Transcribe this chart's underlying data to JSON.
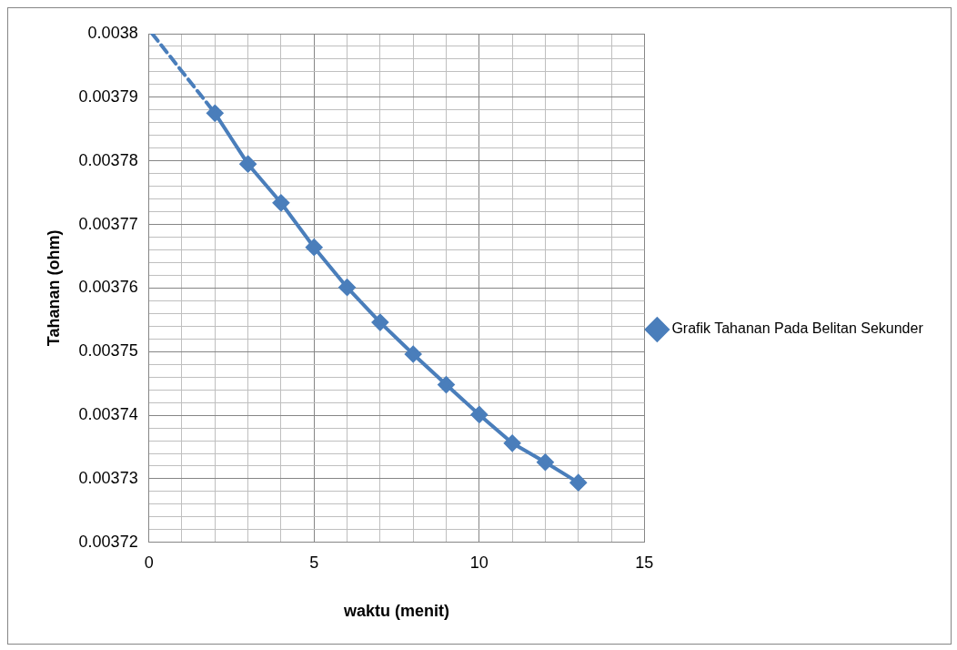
{
  "chart_data": {
    "type": "line",
    "xlabel": "waktu (menit)",
    "ylabel": "Tahanan (ohm)",
    "xlim": [
      0,
      15
    ],
    "ylim": [
      0.00372,
      0.0038
    ],
    "xticks": [
      0,
      {
        "value": 1,
        "label": null
      },
      {
        "value": 2,
        "label": null
      },
      {
        "value": 3,
        "label": null
      },
      {
        "value": 4,
        "label": null
      },
      5,
      {
        "value": 6,
        "label": null
      },
      {
        "value": 7,
        "label": null
      },
      {
        "value": 8,
        "label": null
      },
      {
        "value": 9,
        "label": null
      },
      10,
      {
        "value": 11,
        "label": null
      },
      {
        "value": 12,
        "label": null
      },
      {
        "value": 13,
        "label": null
      },
      {
        "value": 14,
        "label": null
      },
      15
    ],
    "yticks": [
      0.00372,
      {
        "value": 0.003722,
        "label": null
      },
      {
        "value": 0.003724,
        "label": null
      },
      {
        "value": 0.003726,
        "label": null
      },
      {
        "value": 0.003728,
        "label": null
      },
      0.00373,
      {
        "value": 0.003732,
        "label": null
      },
      {
        "value": 0.003734,
        "label": null
      },
      {
        "value": 0.003736,
        "label": null
      },
      {
        "value": 0.003738,
        "label": null
      },
      0.00374,
      {
        "value": 0.003742,
        "label": null
      },
      {
        "value": 0.003744,
        "label": null
      },
      {
        "value": 0.003746,
        "label": null
      },
      {
        "value": 0.003748,
        "label": null
      },
      0.00375,
      {
        "value": 0.003752,
        "label": null
      },
      {
        "value": 0.003754,
        "label": null
      },
      {
        "value": 0.003756,
        "label": null
      },
      {
        "value": 0.003758,
        "label": null
      },
      0.00376,
      {
        "value": 0.003762,
        "label": null
      },
      {
        "value": 0.003764,
        "label": null
      },
      {
        "value": 0.003766,
        "label": null
      },
      {
        "value": 0.003768,
        "label": null
      },
      0.00377,
      {
        "value": 0.003772,
        "label": null
      },
      {
        "value": 0.003774,
        "label": null
      },
      {
        "value": 0.003776,
        "label": null
      },
      {
        "value": 0.003778,
        "label": null
      },
      0.00378,
      {
        "value": 0.003782,
        "label": null
      },
      {
        "value": 0.003784,
        "label": null
      },
      {
        "value": 0.003786,
        "label": null
      },
      {
        "value": 0.003788,
        "label": null
      },
      0.00379,
      {
        "value": 0.003792,
        "label": null
      },
      {
        "value": 0.003794,
        "label": null
      },
      {
        "value": 0.003796,
        "label": null
      },
      {
        "value": 0.003798,
        "label": null
      },
      0.0038
    ],
    "grid": true,
    "legend": "right",
    "series": [
      {
        "name": "Grafik Tahanan Pada Belitan Sekunder",
        "color": "#4a7ebb",
        "marker": "diamond",
        "line_style": "solid",
        "x": [
          2,
          3,
          4,
          5,
          6,
          7,
          8,
          9,
          10,
          11,
          12,
          13
        ],
        "values": [
          0.0037875,
          0.0037795,
          0.0037734,
          0.0037664,
          0.0037601,
          0.0037546,
          0.0037496,
          0.0037448,
          0.0037401,
          0.0037356,
          0.0037326,
          0.0037294
        ]
      },
      {
        "color": "#4a7ebb",
        "marker": "none",
        "line_style": "dashed",
        "x": [
          0.1,
          2
        ],
        "values": [
          0.0038,
          0.0037875
        ]
      }
    ]
  }
}
